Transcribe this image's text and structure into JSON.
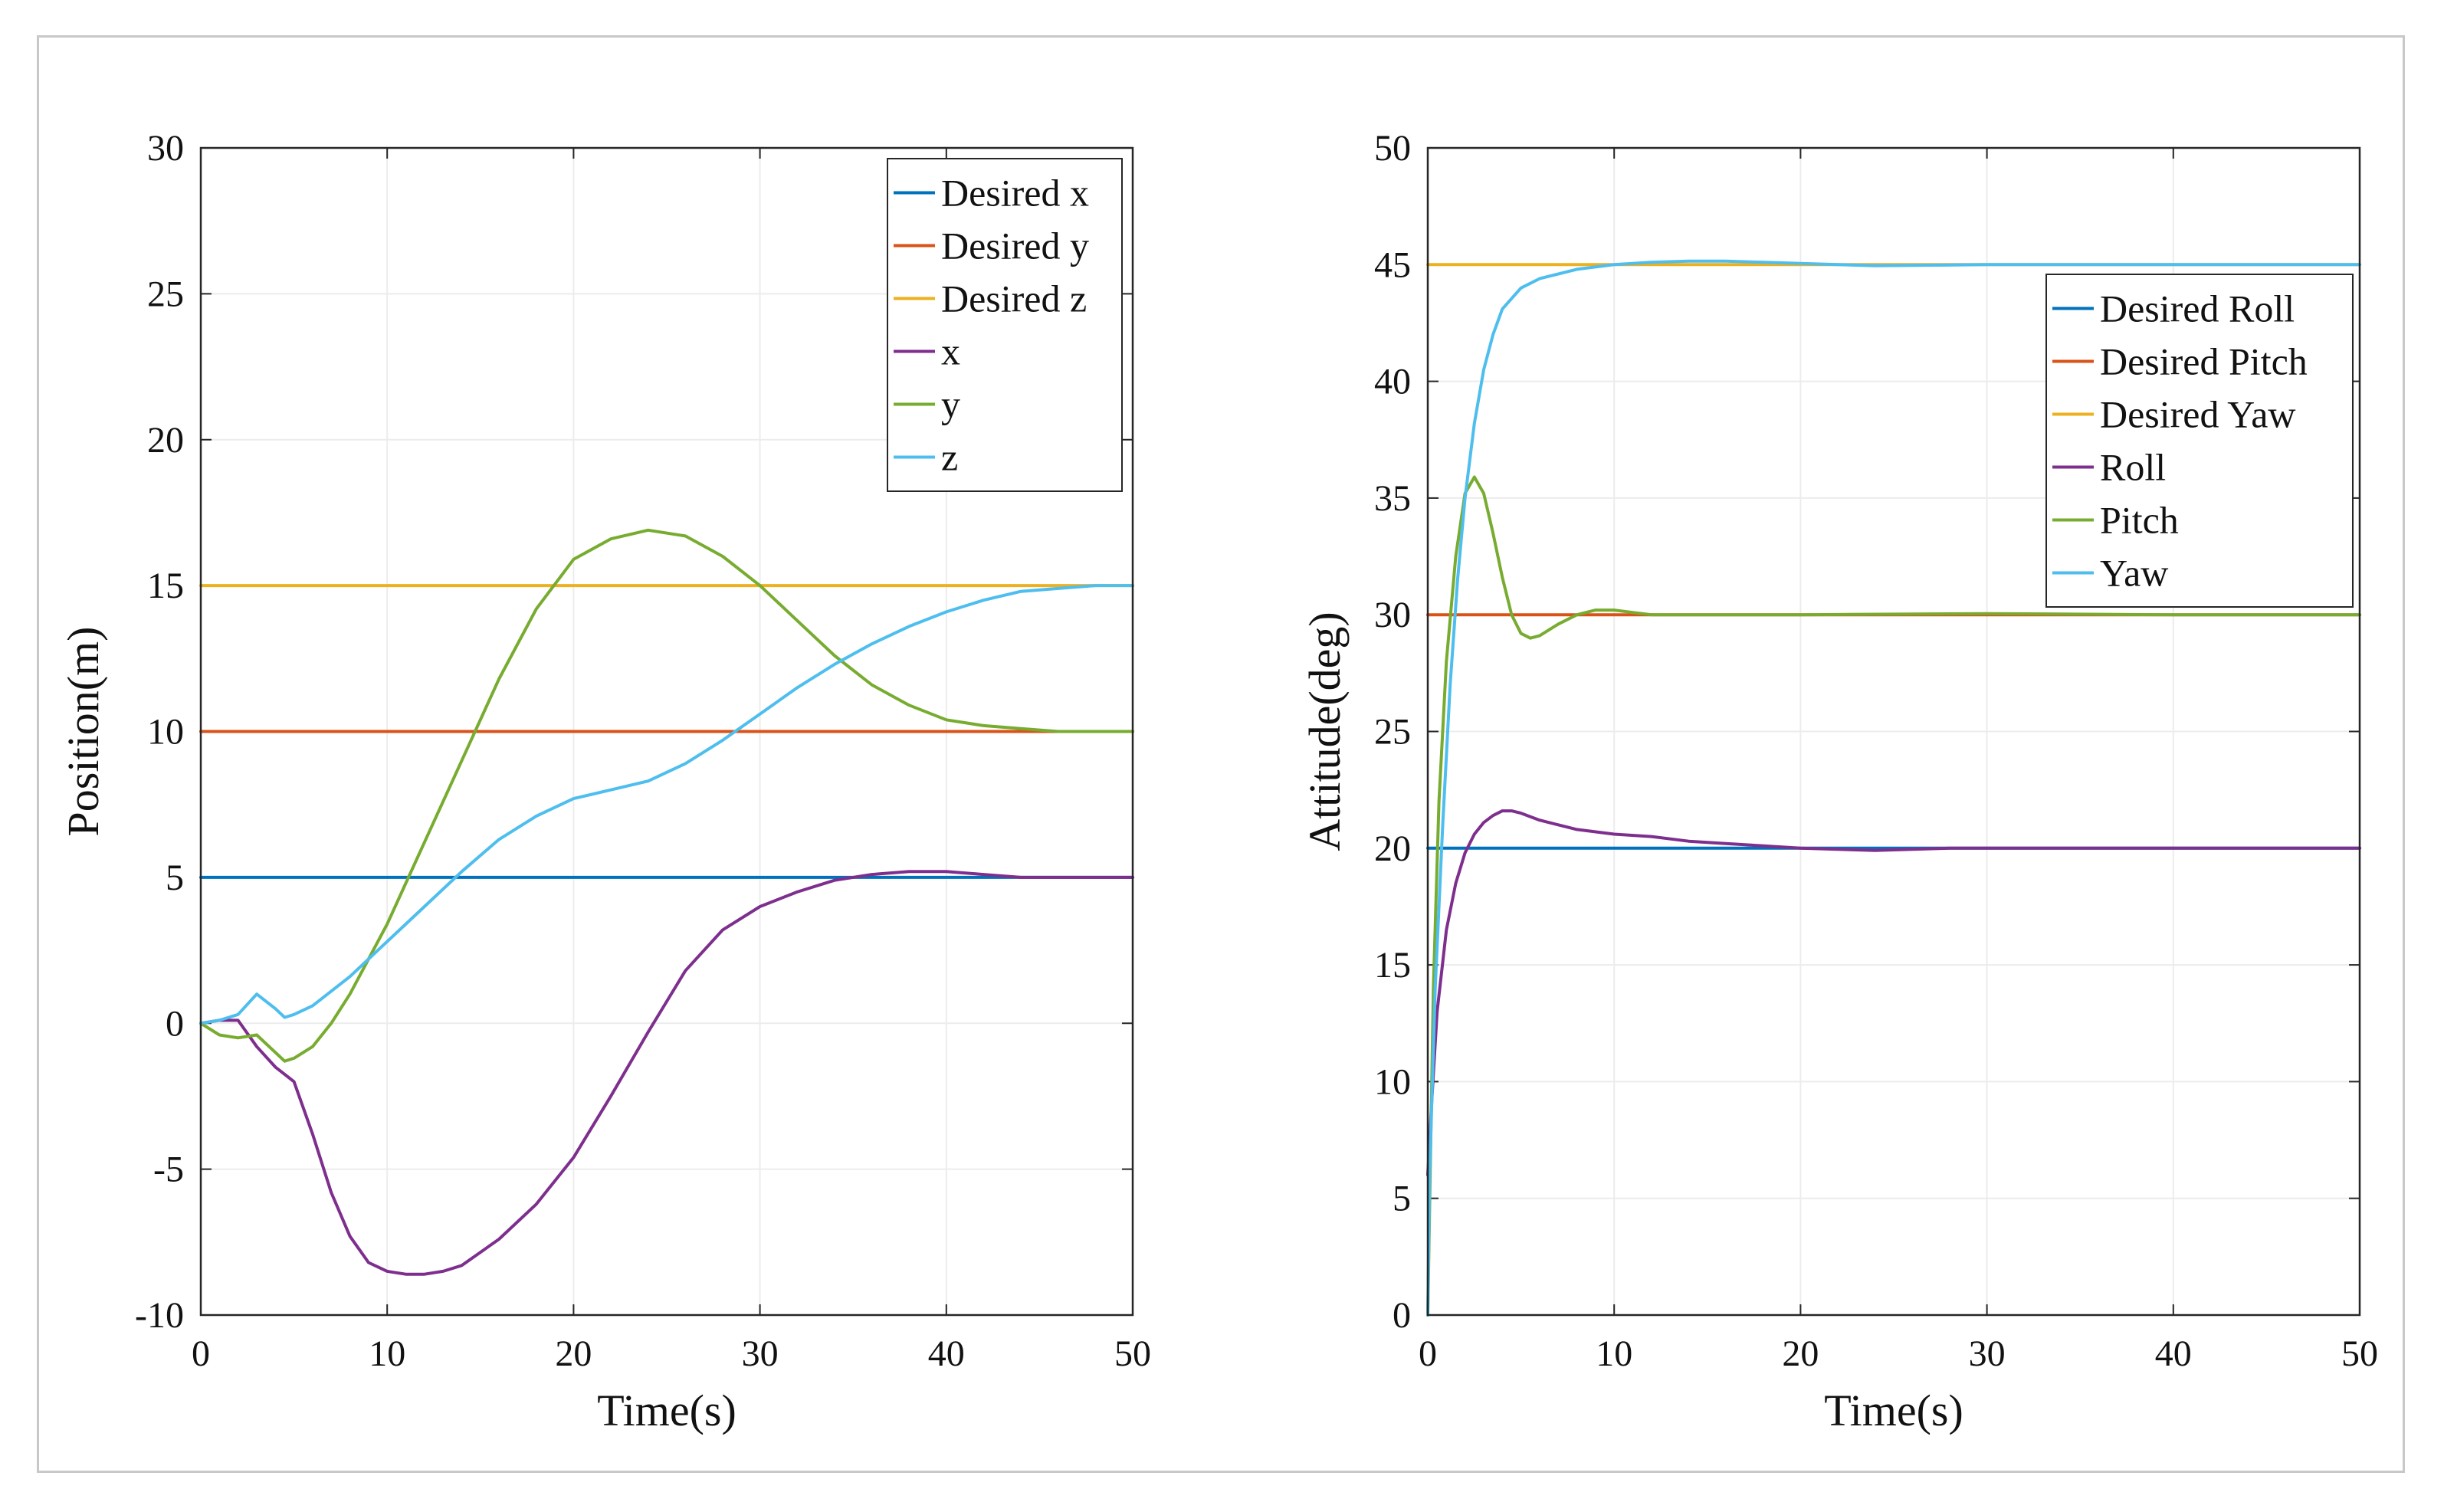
{
  "chart_data": [
    {
      "type": "line",
      "xlabel": "Time(s)",
      "ylabel": "Position(m)",
      "xlim": [
        0,
        50
      ],
      "ylim": [
        -10,
        30
      ],
      "xticks": [
        0,
        10,
        20,
        30,
        40,
        50
      ],
      "yticks": [
        -10,
        -5,
        0,
        5,
        10,
        15,
        20,
        25,
        30
      ],
      "x_tick_labels": [
        "0",
        "10",
        "20",
        "30",
        "40",
        "50"
      ],
      "y_tick_labels": [
        "-10",
        "-5",
        "0",
        "5",
        "10",
        "15",
        "20",
        "25",
        "30"
      ],
      "grid": true,
      "legend_position": "top-right",
      "series": [
        {
          "name": "Desired x",
          "color": "#0072BD",
          "x": [
            0,
            50
          ],
          "y": [
            5,
            5
          ]
        },
        {
          "name": "Desired y",
          "color": "#D95319",
          "x": [
            0,
            50
          ],
          "y": [
            10,
            10
          ]
        },
        {
          "name": "Desired z",
          "color": "#EDB120",
          "x": [
            0,
            50
          ],
          "y": [
            15,
            15
          ]
        },
        {
          "name": "x",
          "color": "#7E2F8E",
          "x": [
            0,
            1,
            2,
            3,
            4,
            5,
            6,
            7,
            8,
            9,
            10,
            11,
            12,
            13,
            14,
            16,
            18,
            20,
            22,
            24,
            26,
            28,
            30,
            32,
            34,
            36,
            38,
            40,
            42,
            44,
            46,
            48,
            50
          ],
          "y": [
            0,
            0.1,
            0.1,
            -0.8,
            -1.5,
            -2.0,
            -3.8,
            -5.8,
            -7.3,
            -8.2,
            -8.5,
            -8.6,
            -8.6,
            -8.5,
            -8.3,
            -7.4,
            -6.2,
            -4.6,
            -2.5,
            -0.3,
            1.8,
            3.2,
            4.0,
            4.5,
            4.9,
            5.1,
            5.2,
            5.2,
            5.1,
            5.0,
            5.0,
            5.0,
            5.0
          ]
        },
        {
          "name": "y",
          "color": "#77AC30",
          "x": [
            0,
            1,
            2,
            3,
            4,
            4.5,
            5,
            6,
            7,
            8,
            9,
            10,
            12,
            14,
            16,
            18,
            20,
            22,
            24,
            26,
            28,
            30,
            32,
            34,
            36,
            38,
            40,
            42,
            44,
            46,
            48,
            50
          ],
          "y": [
            0,
            -0.4,
            -0.5,
            -0.4,
            -1.0,
            -1.3,
            -1.2,
            -0.8,
            0,
            1.0,
            2.2,
            3.4,
            6.2,
            9.0,
            11.8,
            14.2,
            15.9,
            16.6,
            16.9,
            16.7,
            16.0,
            15.0,
            13.8,
            12.6,
            11.6,
            10.9,
            10.4,
            10.2,
            10.1,
            10.0,
            10.0,
            10.0
          ]
        },
        {
          "name": "z",
          "color": "#4DBEEE",
          "x": [
            0,
            1,
            2,
            3,
            4,
            4.5,
            5,
            6,
            8,
            10,
            12,
            14,
            16,
            18,
            20,
            22,
            24,
            26,
            28,
            30,
            32,
            34,
            36,
            38,
            40,
            42,
            44,
            46,
            48,
            50
          ],
          "y": [
            0,
            0.1,
            0.3,
            1.0,
            0.5,
            0.2,
            0.3,
            0.6,
            1.6,
            2.8,
            4.0,
            5.2,
            6.3,
            7.1,
            7.7,
            8.0,
            8.3,
            8.9,
            9.7,
            10.6,
            11.5,
            12.3,
            13.0,
            13.6,
            14.1,
            14.5,
            14.8,
            14.9,
            15.0,
            15.0
          ]
        }
      ]
    },
    {
      "type": "line",
      "xlabel": "Time(s)",
      "ylabel": "Attitude(deg)",
      "xlim": [
        0,
        50
      ],
      "ylim": [
        0,
        50
      ],
      "xticks": [
        0,
        10,
        20,
        30,
        40,
        50
      ],
      "yticks": [
        0,
        5,
        10,
        15,
        20,
        25,
        30,
        35,
        40,
        45,
        50
      ],
      "x_tick_labels": [
        "0",
        "10",
        "20",
        "30",
        "40",
        "50"
      ],
      "y_tick_labels": [
        "0",
        "5",
        "10",
        "15",
        "20",
        "25",
        "30",
        "35",
        "40",
        "45",
        "50"
      ],
      "grid": true,
      "legend_position": "top-right",
      "series": [
        {
          "name": "Desired Roll",
          "color": "#0072BD",
          "x": [
            0,
            50
          ],
          "y": [
            20,
            20
          ]
        },
        {
          "name": "Desired Pitch",
          "color": "#D95319",
          "x": [
            0,
            50
          ],
          "y": [
            30,
            30
          ]
        },
        {
          "name": "Desired Yaw",
          "color": "#EDB120",
          "x": [
            0,
            50
          ],
          "y": [
            45,
            45
          ]
        },
        {
          "name": "Roll",
          "color": "#7E2F8E",
          "x": [
            0,
            0.2,
            0.5,
            1,
            1.5,
            2,
            2.5,
            3,
            3.5,
            4,
            4.5,
            5,
            6,
            7,
            8,
            10,
            12,
            14,
            16,
            18,
            20,
            22,
            24,
            26,
            28,
            30,
            35,
            40,
            45,
            50
          ],
          "y": [
            6,
            9,
            13,
            16.5,
            18.5,
            19.8,
            20.6,
            21.1,
            21.4,
            21.6,
            21.6,
            21.5,
            21.2,
            21.0,
            20.8,
            20.6,
            20.5,
            20.3,
            20.2,
            20.1,
            20.0,
            19.95,
            19.9,
            19.95,
            20.0,
            20.0,
            20.0,
            20.0,
            20.0,
            20.0
          ]
        },
        {
          "name": "Pitch",
          "color": "#77AC30",
          "x": [
            0,
            0.3,
            0.6,
            1,
            1.5,
            2,
            2.5,
            3,
            3.5,
            4,
            4.5,
            5,
            5.5,
            6,
            7,
            8,
            9,
            10,
            11,
            12,
            14,
            16,
            20,
            30,
            40,
            50
          ],
          "y": [
            0,
            14,
            22,
            28,
            32.5,
            35.2,
            35.9,
            35.2,
            33.5,
            31.6,
            30.0,
            29.2,
            29.0,
            29.1,
            29.6,
            30.0,
            30.2,
            30.2,
            30.1,
            30.0,
            30.0,
            30.0,
            30.0,
            30.05,
            30.0,
            30.0
          ]
        },
        {
          "name": "Yaw",
          "color": "#4DBEEE",
          "x": [
            0,
            0.1,
            0.4,
            0.8,
            1.2,
            1.6,
            2,
            2.5,
            3,
            3.5,
            4,
            5,
            6,
            8,
            10,
            12,
            14,
            16,
            18,
            20,
            24,
            30,
            40,
            50
          ],
          "y": [
            0,
            6,
            14,
            21,
            27,
            31.5,
            35,
            38.2,
            40.5,
            42.0,
            43.1,
            44.0,
            44.4,
            44.8,
            45.0,
            45.1,
            45.15,
            45.15,
            45.1,
            45.05,
            44.95,
            45.0,
            45.0,
            45.0
          ]
        }
      ]
    }
  ]
}
